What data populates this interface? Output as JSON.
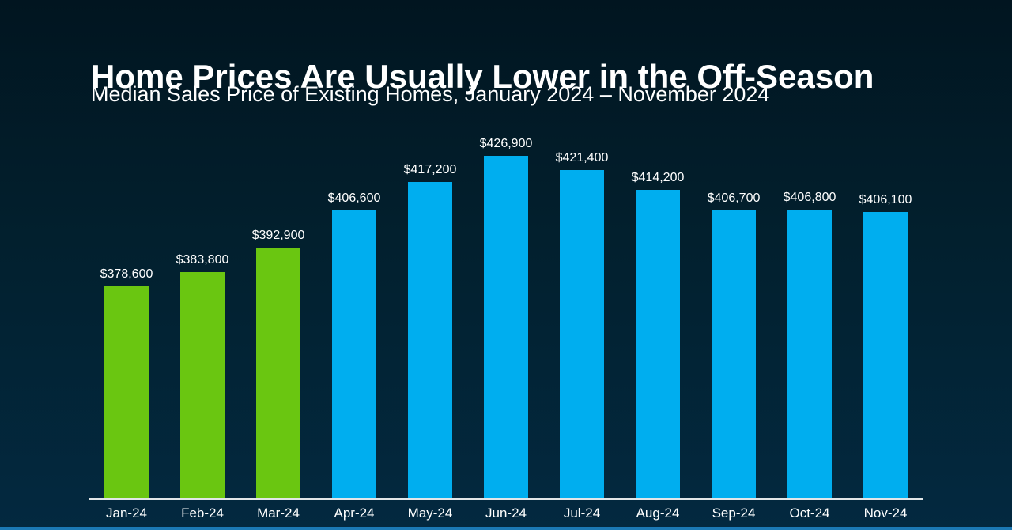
{
  "header": {
    "title": "Home Prices Are Usually Lower in the Off-Season",
    "subtitle": "Median Sales Price of Existing Homes, January 2024 – November 2024"
  },
  "chart_data": {
    "type": "bar",
    "title": "Home Prices Are Usually Lower in the Off-Season",
    "subtitle": "Median Sales Price of Existing Homes, January 2024 – November 2024",
    "categories": [
      "Jan-24",
      "Feb-24",
      "Mar-24",
      "Apr-24",
      "May-24",
      "Jun-24",
      "Jul-24",
      "Aug-24",
      "Sep-24",
      "Oct-24",
      "Nov-24"
    ],
    "series": [
      {
        "name": "Median Sales Price of Existing Homes",
        "values": [
          378600,
          383800,
          392900,
          406600,
          417200,
          426900,
          421400,
          414200,
          406700,
          406800,
          406100
        ]
      }
    ],
    "data_labels": [
      "$378,600",
      "$383,800",
      "$392,900",
      "$406,600",
      "$417,200",
      "$426,900",
      "$421,400",
      "$414,200",
      "$406,700",
      "$406,800",
      "$406,100"
    ],
    "bar_color_groups": [
      "green",
      "green",
      "green",
      "blue",
      "blue",
      "blue",
      "blue",
      "blue",
      "blue",
      "blue",
      "blue"
    ],
    "palette": {
      "green": "#6ac611",
      "blue": "#00aeef"
    },
    "xlabel": "",
    "ylabel": "",
    "ylim": [
      300000,
      430000
    ],
    "grid": false,
    "legend_position": "none",
    "data_label_position": "above-bar"
  },
  "style": {
    "background_top": "#011520",
    "background_bottom": "#032940",
    "axis_line_color": "#e2e6e8",
    "accent_strip_color": "#1b79b5",
    "text_color": "#ffffff"
  }
}
